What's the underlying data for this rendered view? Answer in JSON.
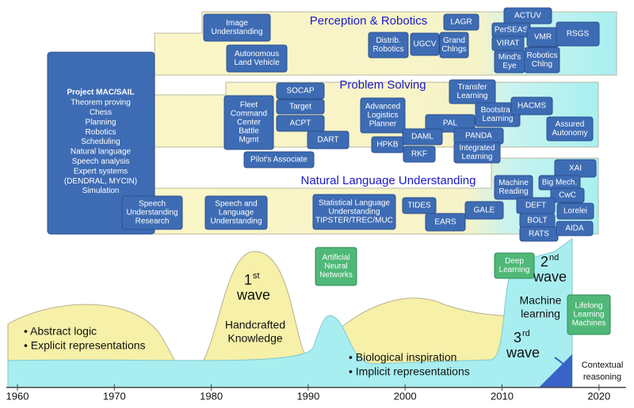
{
  "project_box": {
    "title": "Project MAC/SAIL",
    "items": [
      "Theorem proving",
      "Chess",
      "Planning",
      "Robotics",
      "Scheduling",
      "Natural language",
      "Speech analysis",
      "Expert systems",
      "(DENDRAL, MYCIN)",
      "Simulation"
    ]
  },
  "sections": [
    {
      "title": "Perception & Robotics",
      "boxes": [
        {
          "lines": [
            "Image",
            "Understanding"
          ]
        },
        {
          "lines": [
            "Autonomous",
            "Land Vehicle"
          ]
        },
        {
          "lines": [
            "Distrib.",
            "Robotics"
          ]
        },
        {
          "lines": [
            "UGCV"
          ]
        },
        {
          "lines": [
            "Grand",
            "Chlngs"
          ]
        },
        {
          "lines": [
            "LAGR"
          ]
        },
        {
          "lines": [
            "ACTUV"
          ]
        },
        {
          "lines": [
            "PerSEAS"
          ]
        },
        {
          "lines": [
            "VMR"
          ]
        },
        {
          "lines": [
            "RSGS"
          ]
        },
        {
          "lines": [
            "VIRAT"
          ]
        },
        {
          "lines": [
            "Mind's",
            "Eye"
          ]
        },
        {
          "lines": [
            "Robotics",
            "Chlng"
          ]
        }
      ]
    },
    {
      "title": "Problem Solving",
      "boxes": [
        {
          "lines": [
            "SOCAP"
          ]
        },
        {
          "lines": [
            "Target"
          ]
        },
        {
          "lines": [
            "ACPT"
          ]
        },
        {
          "lines": [
            "Fleet",
            "Command",
            "Center",
            "Battle",
            "Mgmt"
          ]
        },
        {
          "lines": [
            "DART"
          ]
        },
        {
          "lines": [
            "Pilot's Associate"
          ]
        },
        {
          "lines": [
            "Advanced",
            "Logistics",
            "Planner"
          ]
        },
        {
          "lines": [
            "Transfer",
            "Learning"
          ]
        },
        {
          "lines": [
            "Bootstrap",
            "Learning"
          ]
        },
        {
          "lines": [
            "HACMS"
          ]
        },
        {
          "lines": [
            "PAL"
          ]
        },
        {
          "lines": [
            "DAML"
          ]
        },
        {
          "lines": [
            "HPKB"
          ]
        },
        {
          "lines": [
            "PANDA"
          ]
        },
        {
          "lines": [
            "RKF"
          ]
        },
        {
          "lines": [
            "Integrated",
            "Learning"
          ]
        },
        {
          "lines": [
            "Assured",
            "Autonomy"
          ]
        }
      ]
    },
    {
      "title": "Natural Language Understanding",
      "boxes": [
        {
          "lines": [
            "Speech",
            "Understanding",
            "Research"
          ]
        },
        {
          "lines": [
            "Speech and",
            "Language",
            "Understanding"
          ]
        },
        {
          "lines": [
            "Statistical Language",
            "Understanding",
            "TIPSTER/TREC/MUC"
          ]
        },
        {
          "lines": [
            "TIDES"
          ]
        },
        {
          "lines": [
            "EARS"
          ]
        },
        {
          "lines": [
            "GALE"
          ]
        },
        {
          "lines": [
            "Machine",
            "Reading"
          ]
        },
        {
          "lines": [
            "XAI"
          ]
        },
        {
          "lines": [
            "Big Mech."
          ]
        },
        {
          "lines": [
            "CwC"
          ]
        },
        {
          "lines": [
            "DEFT"
          ]
        },
        {
          "lines": [
            "Lorelei"
          ]
        },
        {
          "lines": [
            "BOLT"
          ]
        },
        {
          "lines": [
            "RATS"
          ]
        },
        {
          "lines": [
            "AIDA"
          ]
        }
      ]
    }
  ],
  "green_boxes": [
    {
      "lines": [
        "Artificial",
        "Neural",
        "Networks"
      ]
    },
    {
      "lines": [
        "Deep",
        "Learning"
      ]
    },
    {
      "lines": [
        "Lifelong",
        "Learning",
        "Machines"
      ]
    }
  ],
  "waves": [
    {
      "number": "1",
      "suffix": "st",
      "word": "wave",
      "description": [
        "Handcrafted",
        "Knowledge"
      ]
    },
    {
      "number": "2",
      "suffix": "nd",
      "word": "wave",
      "description": [
        "Machine",
        "learning"
      ]
    },
    {
      "number": "3",
      "suffix": "rd",
      "word": "wave",
      "description": [
        "Contextual",
        "reasoning"
      ]
    }
  ],
  "bullets": {
    "first": [
      "• Abstract logic",
      "• Explicit representations"
    ],
    "second": [
      "• Biological inspiration",
      "• Implicit representations"
    ]
  },
  "axis_years": [
    "1960",
    "1970",
    "1980",
    "1990",
    "2000",
    "2010",
    "2020"
  ]
}
